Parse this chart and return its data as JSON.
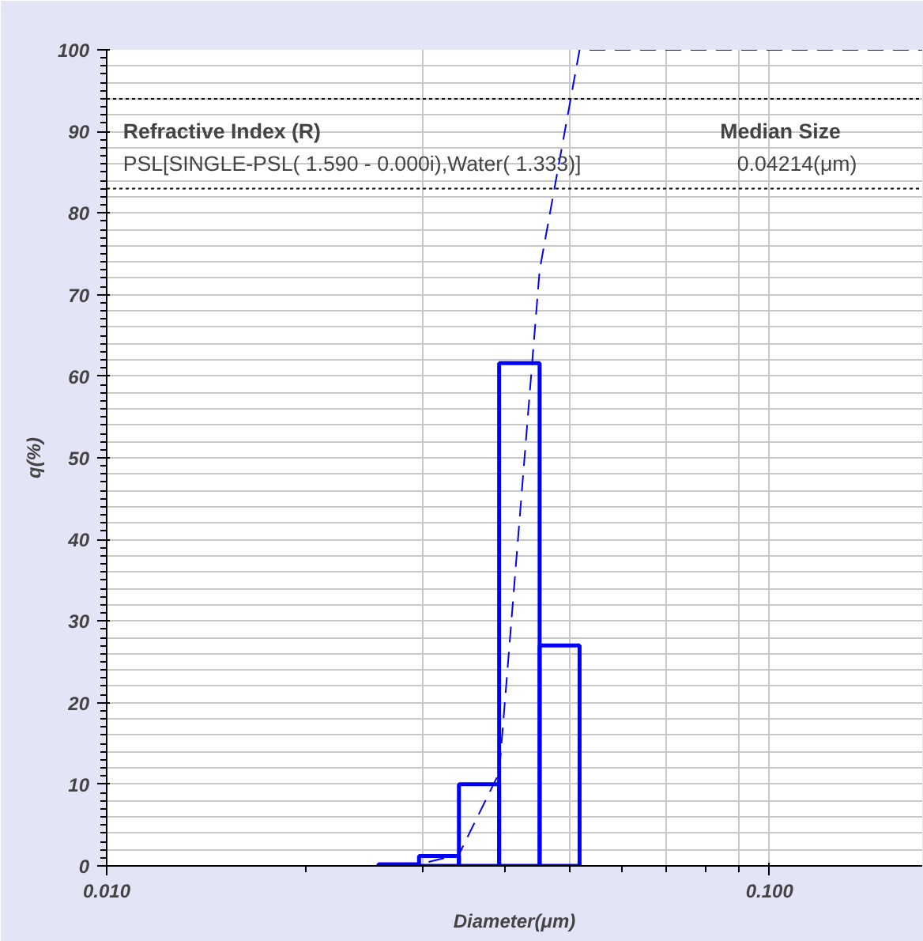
{
  "chart_data": {
    "type": "histogram",
    "xlabel": "Diameter(μm)",
    "ylabel": "q(%)",
    "series": [
      {
        "color": "#0000ff",
        "bins": [
          0.0257,
          0.0296,
          0.034,
          0.0391,
          0.045,
          0.0517
        ],
        "values": [
          0.2,
          1.2,
          10,
          61.6,
          27
        ]
      },
      {
        "type": "line",
        "color": "#0000ff",
        "line_style": "dashed",
        "x": [
          0.0257,
          0.0296,
          0.034,
          0.0391,
          0.045,
          0.0517,
          0.17
        ],
        "values": [
          0,
          0.2,
          1.4,
          11.4,
          73,
          100,
          100
        ]
      }
    ],
    "log": "x",
    "xlim": [
      0.01,
      0.17
    ],
    "ylim": [
      0,
      100
    ],
    "xticks": [
      {
        "value": 0.01,
        "label": "0.010"
      },
      {
        "value": 0.1,
        "label": "0.100"
      }
    ],
    "yticks": [
      0,
      10,
      20,
      30,
      40,
      50,
      60,
      70,
      80,
      90,
      100
    ],
    "grid": true,
    "ref_lines": [
      {
        "axis": "y",
        "value": 94,
        "line_style": "dotted",
        "color": "#000000"
      },
      {
        "axis": "y",
        "value": 83,
        "line_style": "dotted",
        "color": "#000000"
      }
    ],
    "annotations": [
      "Refractive Index (R)",
      "PSL[SINGLE-PSL( 1.590 - 0.000i),Water( 1.333)]",
      "Median Size",
      "0.04214(μm)"
    ]
  }
}
